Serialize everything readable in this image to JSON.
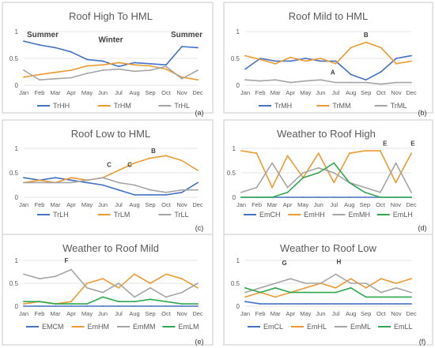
{
  "month_labels": [
    "Jan",
    "Feb",
    "Mar",
    "Apr",
    "May",
    "Jun",
    "Jul",
    "Aug",
    "Sep",
    "Oct",
    "Nov",
    "Dec"
  ],
  "colors": {
    "blue": "#4472C4",
    "orange": "#ED9B30",
    "gray": "#A5A5A5",
    "green": "#2FA84F"
  },
  "panels": [
    {
      "id": "a",
      "title": "Roof High To HML",
      "panel_label": "(a)",
      "chart_data": {
        "type": "line",
        "title": "Roof High To HML",
        "x": [
          "Jan",
          "Feb",
          "Mar",
          "Apr",
          "May",
          "Jun",
          "Jul",
          "Aug",
          "Sep",
          "Oct",
          "Nov",
          "Dec"
        ],
        "yticks": [
          "0",
          "0.5",
          "1"
        ],
        "ylim": [
          0,
          1
        ],
        "series": [
          {
            "name": "TrHH",
            "color": "#4472C4",
            "values": [
              0.82,
              0.75,
              0.7,
              0.62,
              0.48,
              0.45,
              0.35,
              0.42,
              0.4,
              0.38,
              0.72,
              0.7
            ]
          },
          {
            "name": "TrHM",
            "color": "#ED9B30",
            "values": [
              0.15,
              0.2,
              0.24,
              0.28,
              0.36,
              0.38,
              0.42,
              0.38,
              0.36,
              0.3,
              0.15,
              0.1
            ]
          },
          {
            "name": "TrHL",
            "color": "#A5A5A5",
            "values": [
              0.28,
              0.1,
              0.12,
              0.14,
              0.22,
              0.28,
              0.3,
              0.26,
              0.28,
              0.35,
              0.12,
              0.28
            ]
          }
        ],
        "annotations": [
          {
            "text": "Summer",
            "x": 1.2,
            "y": 0.9
          },
          {
            "text": "Winter",
            "x": 5.5,
            "y": 0.8
          },
          {
            "text": "Summer",
            "x": 10.3,
            "y": 0.9
          }
        ]
      }
    },
    {
      "id": "b",
      "title": "Roof Mild to HML",
      "panel_label": "(b)",
      "chart_data": {
        "type": "line",
        "title": "Roof Mild to HML",
        "x": [
          "Jan",
          "Feb",
          "Mar",
          "Apr",
          "May",
          "Jun",
          "Jul",
          "Aug",
          "Sep",
          "Oct",
          "Nov",
          "Dec"
        ],
        "yticks": [
          "0",
          "0.5",
          "1"
        ],
        "ylim": [
          0,
          1
        ],
        "series": [
          {
            "name": "TrMH",
            "color": "#4472C4",
            "values": [
              0.3,
              0.5,
              0.45,
              0.45,
              0.5,
              0.45,
              0.45,
              0.2,
              0.1,
              0.25,
              0.5,
              0.55
            ]
          },
          {
            "name": "TrMM",
            "color": "#ED9B30",
            "values": [
              0.55,
              0.48,
              0.4,
              0.52,
              0.45,
              0.5,
              0.4,
              0.7,
              0.8,
              0.7,
              0.4,
              0.45
            ]
          },
          {
            "name": "TrML",
            "color": "#A5A5A5",
            "values": [
              0.1,
              0.08,
              0.1,
              0.05,
              0.08,
              0.1,
              0.05,
              0.05,
              0.05,
              0.02,
              0.05,
              0.05
            ]
          }
        ],
        "annotations": [
          {
            "text": "B",
            "x": 8.0,
            "y": 0.9
          },
          {
            "text": "A",
            "x": 5.8,
            "y": 0.2
          }
        ]
      }
    },
    {
      "id": "c",
      "title": "Roof Low to HML",
      "panel_label": "(c)",
      "chart_data": {
        "type": "line",
        "title": "Roof Low to HML",
        "x": [
          "Jan",
          "Feb",
          "Mar",
          "Apr",
          "May",
          "Jun",
          "Jul",
          "Aug",
          "Sep",
          "Oct",
          "Nov",
          "Dec"
        ],
        "yticks": [
          "0",
          "0.5",
          "1"
        ],
        "ylim": [
          0,
          1
        ],
        "series": [
          {
            "name": "TrLH",
            "color": "#4472C4",
            "values": [
              0.4,
              0.35,
              0.4,
              0.35,
              0.3,
              0.25,
              0.15,
              0.05,
              0.05,
              0.05,
              0.1,
              0.3
            ]
          },
          {
            "name": "TrLM",
            "color": "#ED9B30",
            "values": [
              0.3,
              0.35,
              0.3,
              0.4,
              0.35,
              0.4,
              0.55,
              0.7,
              0.8,
              0.85,
              0.75,
              0.55
            ]
          },
          {
            "name": "TrLL",
            "color": "#A5A5A5",
            "values": [
              0.3,
              0.3,
              0.3,
              0.3,
              0.35,
              0.4,
              0.3,
              0.25,
              0.15,
              0.1,
              0.15,
              0.15
            ]
          }
        ],
        "annotations": [
          {
            "text": "B",
            "x": 8.2,
            "y": 0.9
          },
          {
            "text": "C",
            "x": 5.4,
            "y": 0.62
          },
          {
            "text": "C",
            "x": 6.7,
            "y": 0.62
          }
        ]
      }
    },
    {
      "id": "d",
      "title": "Weather to Roof High",
      "panel_label": "(d)",
      "chart_data": {
        "type": "line",
        "title": "Weather to Roof High",
        "x": [
          "Jan",
          "Feb",
          "Mar",
          "Apr",
          "May",
          "Jun",
          "Jul",
          "Aug",
          "Sep",
          "Oct",
          "Nov",
          "Dec"
        ],
        "yticks": [
          "0",
          "0.5",
          "1"
        ],
        "ylim": [
          0,
          1
        ],
        "series": [
          {
            "name": "EmCH",
            "color": "#4472C4",
            "values": [
              0,
              0,
              0,
              0,
              0,
              0,
              0,
              0,
              0,
              0,
              0,
              0
            ]
          },
          {
            "name": "EmHH",
            "color": "#ED9B30",
            "values": [
              0.95,
              0.9,
              0.2,
              0.85,
              0.4,
              0.9,
              0.3,
              0.9,
              0.95,
              0.95,
              0.3,
              0.9
            ]
          },
          {
            "name": "EmMH",
            "color": "#A5A5A5",
            "values": [
              0.1,
              0.2,
              0.7,
              0.2,
              0.5,
              0.6,
              0.5,
              0.3,
              0.2,
              0.1,
              0.7,
              0.1
            ]
          },
          {
            "name": "EmLH",
            "color": "#2FA84F",
            "values": [
              0,
              0,
              0,
              0.1,
              0.4,
              0.5,
              0.7,
              0.3,
              0.1,
              0,
              0,
              0
            ]
          }
        ],
        "annotations": [
          {
            "text": "E",
            "x": 9.3,
            "y": 1.06
          },
          {
            "text": "E",
            "x": 11.1,
            "y": 1.06
          }
        ]
      }
    },
    {
      "id": "e",
      "title": "Weather to Roof Mild",
      "panel_label": "(e)",
      "chart_data": {
        "type": "line",
        "title": "Weather to Roof Mild",
        "x": [
          "Jan",
          "Feb",
          "Mar",
          "Apr",
          "May",
          "Jun",
          "Jul",
          "Aug",
          "Sep",
          "Oct",
          "Nov",
          "Dec"
        ],
        "yticks": [
          "0",
          "0.5",
          "1"
        ],
        "ylim": [
          0,
          1
        ],
        "series": [
          {
            "name": "EMCM",
            "color": "#4472C4",
            "values": [
              0,
              0,
              0,
              0,
              0,
              0,
              0,
              0,
              0,
              0,
              0,
              0
            ]
          },
          {
            "name": "EmHM",
            "color": "#ED9B30",
            "values": [
              0.05,
              0.1,
              0.05,
              0.1,
              0.5,
              0.6,
              0.4,
              0.7,
              0.5,
              0.7,
              0.6,
              0.4
            ]
          },
          {
            "name": "EmMM",
            "color": "#A5A5A5",
            "values": [
              0.7,
              0.6,
              0.65,
              0.8,
              0.4,
              0.3,
              0.5,
              0.2,
              0.4,
              0.2,
              0.3,
              0.5
            ]
          },
          {
            "name": "EmLM",
            "color": "#2FA84F",
            "values": [
              0.1,
              0.1,
              0.05,
              0.05,
              0.05,
              0.2,
              0.1,
              0.1,
              0.15,
              0.1,
              0.05,
              0.05
            ]
          }
        ],
        "annotations": [
          {
            "text": "F",
            "x": 2.7,
            "y": 0.95
          }
        ]
      }
    },
    {
      "id": "f",
      "title": "Weather to Roof Low",
      "panel_label": "(f)",
      "chart_data": {
        "type": "line",
        "title": "Weather to Roof Low",
        "x": [
          "Jan",
          "Feb",
          "Mar",
          "Apr",
          "May",
          "Jun",
          "Jul",
          "Aug",
          "Sep",
          "Oct",
          "Nov",
          "Dec"
        ],
        "yticks": [
          "0",
          "0.5",
          "1"
        ],
        "ylim": [
          0,
          1
        ],
        "series": [
          {
            "name": "EmCL",
            "color": "#4472C4",
            "values": [
              0.1,
              0.05,
              0.05,
              0.05,
              0.05,
              0.05,
              0.05,
              0.05,
              0.05,
              0.05,
              0.05,
              0.05
            ]
          },
          {
            "name": "EmHL",
            "color": "#ED9B30",
            "values": [
              0.2,
              0.3,
              0.2,
              0.3,
              0.4,
              0.5,
              0.4,
              0.6,
              0.4,
              0.6,
              0.5,
              0.6
            ]
          },
          {
            "name": "EmML",
            "color": "#A5A5A5",
            "values": [
              0.3,
              0.4,
              0.5,
              0.6,
              0.5,
              0.5,
              0.7,
              0.5,
              0.5,
              0.3,
              0.4,
              0.3
            ]
          },
          {
            "name": "EmLL",
            "color": "#2FA84F",
            "values": [
              0.4,
              0.3,
              0.4,
              0.3,
              0.3,
              0.3,
              0.3,
              0.4,
              0.2,
              0.2,
              0.2,
              0.2
            ]
          }
        ],
        "annotations": [
          {
            "text": "G",
            "x": 2.6,
            "y": 0.9
          },
          {
            "text": "H",
            "x": 6.2,
            "y": 0.92
          }
        ]
      }
    }
  ]
}
